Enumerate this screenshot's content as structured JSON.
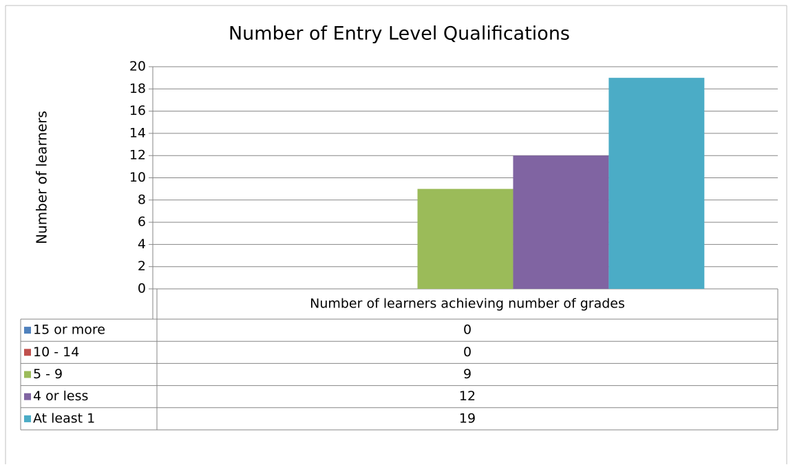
{
  "chart_data": {
    "type": "bar",
    "title": "Number of Entry Level Qualifications",
    "y_axis_label": "Number of learners",
    "categories": [
      "Number of learners achieving number of grades"
    ],
    "series": [
      {
        "name": "15 or more",
        "color": "#4f81bd",
        "values": [
          0
        ]
      },
      {
        "name": "10 - 14",
        "color": "#c0504d",
        "values": [
          0
        ]
      },
      {
        "name": "5 - 9",
        "color": "#9bbb59",
        "values": [
          9
        ]
      },
      {
        "name": "4 or less",
        "color": "#8064a2",
        "values": [
          12
        ]
      },
      {
        "name": "At least 1",
        "color": "#4bacc6",
        "values": [
          19
        ]
      }
    ],
    "ylim": [
      0,
      20
    ],
    "yticks": [
      0,
      2,
      4,
      6,
      8,
      10,
      12,
      14,
      16,
      18,
      20
    ],
    "grid": true,
    "data_table": true
  }
}
